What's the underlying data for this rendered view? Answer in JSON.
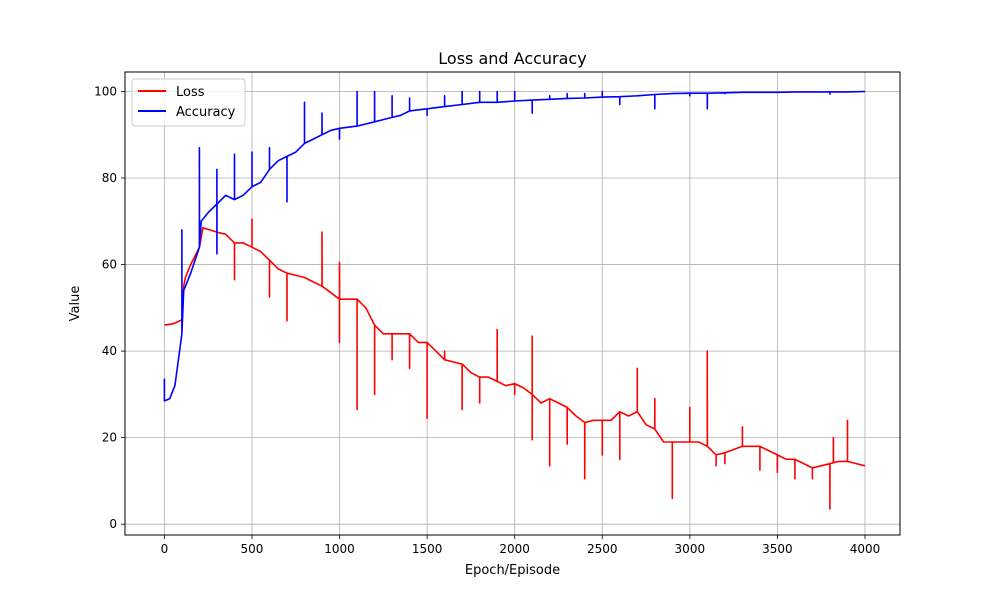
{
  "chart_data": {
    "type": "line",
    "title": "Loss and Accuracy",
    "xlabel": "Epoch/Episode",
    "ylabel": "Value",
    "xlim": [
      -225,
      4200
    ],
    "ylim": [
      -2.5,
      104.5
    ],
    "xticks": [
      0,
      500,
      1000,
      1500,
      2000,
      2500,
      3000,
      3500,
      4000
    ],
    "yticks": [
      0,
      20,
      40,
      60,
      80,
      100
    ],
    "grid": true,
    "legend_position": "top-left",
    "series": [
      {
        "name": "Loss",
        "color": "#ff0000",
        "points": [
          [
            0,
            46
          ],
          [
            50,
            46.3
          ],
          [
            100,
            47.2
          ],
          [
            110,
            55
          ],
          [
            120,
            57
          ],
          [
            150,
            60
          ],
          [
            200,
            64
          ],
          [
            220,
            68.5
          ],
          [
            260,
            68
          ],
          [
            300,
            67.5
          ],
          [
            350,
            67
          ],
          [
            400,
            65
          ],
          [
            450,
            65
          ],
          [
            500,
            64
          ],
          [
            550,
            63
          ],
          [
            600,
            61
          ],
          [
            650,
            59
          ],
          [
            700,
            58
          ],
          [
            800,
            57
          ],
          [
            900,
            55
          ],
          [
            1000,
            52
          ],
          [
            1100,
            52
          ],
          [
            1150,
            50
          ],
          [
            1200,
            46
          ],
          [
            1250,
            44
          ],
          [
            1300,
            44
          ],
          [
            1400,
            44
          ],
          [
            1450,
            42
          ],
          [
            1500,
            42
          ],
          [
            1550,
            40
          ],
          [
            1600,
            38
          ],
          [
            1700,
            37
          ],
          [
            1750,
            35
          ],
          [
            1800,
            34
          ],
          [
            1850,
            34
          ],
          [
            1900,
            33
          ],
          [
            1950,
            32
          ],
          [
            2000,
            32.5
          ],
          [
            2050,
            31.5
          ],
          [
            2100,
            30
          ],
          [
            2150,
            28
          ],
          [
            2200,
            29
          ],
          [
            2250,
            28
          ],
          [
            2300,
            27
          ],
          [
            2350,
            25
          ],
          [
            2400,
            23.5
          ],
          [
            2450,
            24
          ],
          [
            2500,
            24
          ],
          [
            2550,
            24
          ],
          [
            2600,
            26
          ],
          [
            2650,
            25
          ],
          [
            2700,
            26
          ],
          [
            2750,
            23
          ],
          [
            2800,
            22
          ],
          [
            2850,
            19
          ],
          [
            2900,
            19
          ],
          [
            2950,
            19
          ],
          [
            3000,
            19
          ],
          [
            3050,
            19
          ],
          [
            3100,
            18
          ],
          [
            3150,
            16
          ],
          [
            3200,
            16.5
          ],
          [
            3300,
            18
          ],
          [
            3350,
            18
          ],
          [
            3400,
            18
          ],
          [
            3450,
            17
          ],
          [
            3500,
            16
          ],
          [
            3550,
            15
          ],
          [
            3600,
            15
          ],
          [
            3650,
            14
          ],
          [
            3700,
            13
          ],
          [
            3750,
            13.5
          ],
          [
            3800,
            14
          ],
          [
            3850,
            14.5
          ],
          [
            3900,
            14.5
          ],
          [
            3950,
            14
          ],
          [
            4000,
            13.5
          ]
        ],
        "spikes": [
          [
            400,
            56.5
          ],
          [
            500,
            70.5
          ],
          [
            600,
            52.5
          ],
          [
            700,
            47
          ],
          [
            900,
            67.5
          ],
          [
            1000,
            42
          ],
          [
            1000,
            60.5
          ],
          [
            1100,
            26.5
          ],
          [
            1200,
            30
          ],
          [
            1300,
            38
          ],
          [
            1400,
            36
          ],
          [
            1500,
            24.5
          ],
          [
            1600,
            40
          ],
          [
            1700,
            26.5
          ],
          [
            1800,
            28
          ],
          [
            1900,
            45
          ],
          [
            2000,
            30
          ],
          [
            2100,
            19.5
          ],
          [
            2100,
            43.5
          ],
          [
            2200,
            13.5
          ],
          [
            2300,
            18.5
          ],
          [
            2400,
            10.5
          ],
          [
            2500,
            16
          ],
          [
            2600,
            15
          ],
          [
            2700,
            36
          ],
          [
            2800,
            29
          ],
          [
            2900,
            6
          ],
          [
            3000,
            27
          ],
          [
            3100,
            40
          ],
          [
            3150,
            13.5
          ],
          [
            3200,
            14
          ],
          [
            3300,
            22.5
          ],
          [
            3400,
            12.5
          ],
          [
            3500,
            12
          ],
          [
            3600,
            10.5
          ],
          [
            3700,
            10.5
          ],
          [
            3800,
            3.5
          ],
          [
            3820,
            20
          ],
          [
            3900,
            24
          ]
        ]
      },
      {
        "name": "Accuracy",
        "color": "#0000ff",
        "points": [
          [
            0,
            28.5
          ],
          [
            30,
            29
          ],
          [
            60,
            32
          ],
          [
            80,
            38
          ],
          [
            100,
            44
          ],
          [
            110,
            54
          ],
          [
            130,
            56
          ],
          [
            150,
            58
          ],
          [
            200,
            64
          ],
          [
            210,
            70
          ],
          [
            250,
            72
          ],
          [
            300,
            74
          ],
          [
            350,
            76
          ],
          [
            400,
            75
          ],
          [
            450,
            76
          ],
          [
            500,
            78
          ],
          [
            550,
            79
          ],
          [
            600,
            82
          ],
          [
            650,
            84
          ],
          [
            700,
            85
          ],
          [
            750,
            86
          ],
          [
            800,
            88
          ],
          [
            850,
            89
          ],
          [
            900,
            90
          ],
          [
            950,
            91
          ],
          [
            1000,
            91.5
          ],
          [
            1100,
            92
          ],
          [
            1200,
            93
          ],
          [
            1300,
            94
          ],
          [
            1350,
            94.5
          ],
          [
            1400,
            95.5
          ],
          [
            1500,
            96
          ],
          [
            1600,
            96.5
          ],
          [
            1700,
            97
          ],
          [
            1800,
            97.5
          ],
          [
            1900,
            97.5
          ],
          [
            2000,
            97.8
          ],
          [
            2100,
            98
          ],
          [
            2200,
            98.2
          ],
          [
            2300,
            98.4
          ],
          [
            2400,
            98.5
          ],
          [
            2500,
            98.7
          ],
          [
            2600,
            98.8
          ],
          [
            2700,
            99
          ],
          [
            2800,
            99.3
          ],
          [
            2900,
            99.5
          ],
          [
            3000,
            99.6
          ],
          [
            3100,
            99.6
          ],
          [
            3200,
            99.7
          ],
          [
            3300,
            99.8
          ],
          [
            3400,
            99.8
          ],
          [
            3500,
            99.8
          ],
          [
            3600,
            99.9
          ],
          [
            3700,
            99.9
          ],
          [
            3800,
            99.9
          ],
          [
            3900,
            99.9
          ],
          [
            4000,
            100
          ]
        ],
        "spikes": [
          [
            0,
            33.5
          ],
          [
            100,
            68
          ],
          [
            200,
            87
          ],
          [
            300,
            82
          ],
          [
            300,
            62.5
          ],
          [
            400,
            85.5
          ],
          [
            500,
            86
          ],
          [
            600,
            87
          ],
          [
            700,
            74.5
          ],
          [
            800,
            97.5
          ],
          [
            900,
            95
          ],
          [
            1000,
            89
          ],
          [
            1100,
            100
          ],
          [
            1200,
            100
          ],
          [
            1300,
            99
          ],
          [
            1400,
            98.5
          ],
          [
            1500,
            94.5
          ],
          [
            1600,
            99
          ],
          [
            1700,
            100
          ],
          [
            1800,
            100
          ],
          [
            1900,
            100
          ],
          [
            2000,
            100
          ],
          [
            2100,
            95
          ],
          [
            2200,
            99
          ],
          [
            2300,
            99.5
          ],
          [
            2400,
            99.5
          ],
          [
            2500,
            100
          ],
          [
            2600,
            97
          ],
          [
            2700,
            99
          ],
          [
            2800,
            96
          ],
          [
            2900,
            99.5
          ],
          [
            3000,
            99
          ],
          [
            3100,
            96
          ],
          [
            3200,
            99.5
          ],
          [
            3800,
            99.4
          ]
        ]
      }
    ]
  }
}
